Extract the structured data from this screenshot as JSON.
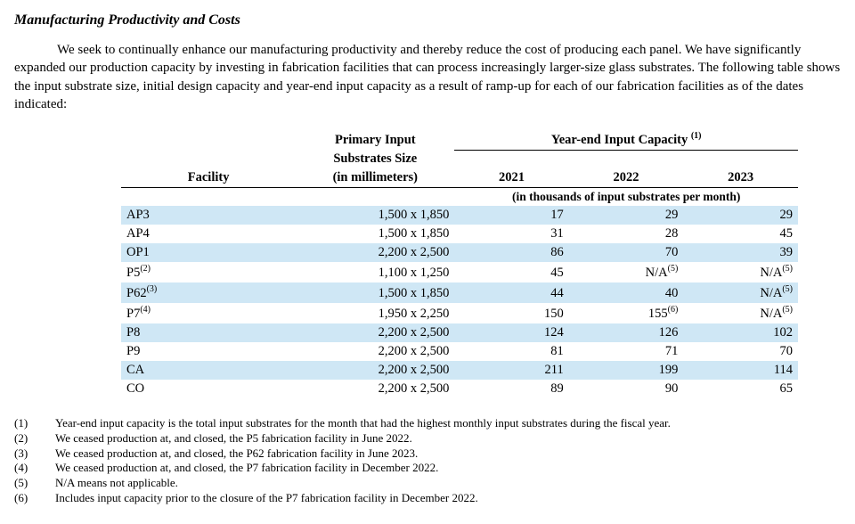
{
  "heading": "Manufacturing Productivity and Costs",
  "paragraph": "We seek to continually enhance our manufacturing productivity and thereby reduce the cost of producing each panel. We have significantly expanded our production capacity by investing in fabrication facilities that can process increasingly larger-size glass substrates. The following table shows the input substrate size, initial design capacity and year-end input capacity as a result of ramp-up for each of our fabrication facilities as of the dates indicated:",
  "table_headers": {
    "facility": "Facility",
    "size_line1": "Primary Input",
    "size_line2": "Substrates Size",
    "size_line3": "(in millimeters)",
    "capacity_label": "Year-end Input Capacity",
    "capacity_sup": "(1)",
    "years": [
      "2021",
      "2022",
      "2023"
    ],
    "unit_label": "(in thousands of input substrates per month)"
  },
  "colors": {
    "zebra": "#cfe7f5"
  },
  "rows": [
    {
      "facility": "AP3",
      "facility_sup": "",
      "size": "1,500 x 1,850",
      "y1": "17",
      "y1_sup": "",
      "y2": "29",
      "y2_sup": "",
      "y3": "29",
      "y3_sup": ""
    },
    {
      "facility": "AP4",
      "facility_sup": "",
      "size": "1,500 x 1,850",
      "y1": "31",
      "y1_sup": "",
      "y2": "28",
      "y2_sup": "",
      "y3": "45",
      "y3_sup": ""
    },
    {
      "facility": "OP1",
      "facility_sup": "",
      "size": "2,200 x 2,500",
      "y1": "86",
      "y1_sup": "",
      "y2": "70",
      "y2_sup": "",
      "y3": "39",
      "y3_sup": ""
    },
    {
      "facility": "P5",
      "facility_sup": "(2)",
      "size": "1,100 x 1,250",
      "y1": "45",
      "y1_sup": "",
      "y2": "N/A",
      "y2_sup": "(5)",
      "y3": "N/A",
      "y3_sup": "(5)"
    },
    {
      "facility": "P62",
      "facility_sup": "(3)",
      "size": "1,500 x 1,850",
      "y1": "44",
      "y1_sup": "",
      "y2": "40",
      "y2_sup": "",
      "y3": "N/A",
      "y3_sup": "(5)"
    },
    {
      "facility": "P7",
      "facility_sup": "(4)",
      "size": "1,950 x 2,250",
      "y1": "150",
      "y1_sup": "",
      "y2": "155",
      "y2_sup": "(6)",
      "y3": "N/A",
      "y3_sup": "(5)"
    },
    {
      "facility": "P8",
      "facility_sup": "",
      "size": "2,200 x 2,500",
      "y1": "124",
      "y1_sup": "",
      "y2": "126",
      "y2_sup": "",
      "y3": "102",
      "y3_sup": ""
    },
    {
      "facility": "P9",
      "facility_sup": "",
      "size": "2,200 x 2,500",
      "y1": "81",
      "y1_sup": "",
      "y2": "71",
      "y2_sup": "",
      "y3": "70",
      "y3_sup": ""
    },
    {
      "facility": "CA",
      "facility_sup": "",
      "size": "2,200 x 2,500",
      "y1": "211",
      "y1_sup": "",
      "y2": "199",
      "y2_sup": "",
      "y3": "114",
      "y3_sup": ""
    },
    {
      "facility": "CO",
      "facility_sup": "",
      "size": "2,200 x 2,500",
      "y1": "89",
      "y1_sup": "",
      "y2": "90",
      "y2_sup": "",
      "y3": "65",
      "y3_sup": ""
    }
  ],
  "footnotes": [
    {
      "num": "(1)",
      "text": "Year-end input capacity is the total input substrates for the month that had the highest monthly input substrates during the fiscal year."
    },
    {
      "num": "(2)",
      "text": "We ceased production at, and closed, the P5 fabrication facility in June 2022."
    },
    {
      "num": "(3)",
      "text": "We ceased production at, and closed, the P62 fabrication facility in June 2023."
    },
    {
      "num": "(4)",
      "text": "We ceased production at, and closed, the P7 fabrication facility in December 2022."
    },
    {
      "num": "(5)",
      "text": "N/A means not applicable."
    },
    {
      "num": "(6)",
      "text": "Includes input capacity prior to the closure of the P7 fabrication facility in December 2022."
    }
  ]
}
